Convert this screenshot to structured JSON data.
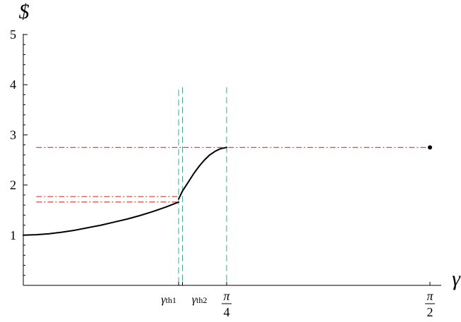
{
  "chart_data": {
    "type": "line",
    "title": "",
    "xlabel": "γ",
    "ylabel": "$",
    "ylim": [
      0,
      5
    ],
    "xlim": [
      0,
      1.6
    ],
    "y_ticks": [
      {
        "value": 1,
        "label": "1"
      },
      {
        "value": 2,
        "label": "2"
      },
      {
        "value": 3,
        "label": "3"
      },
      {
        "value": 4,
        "label": "4"
      },
      {
        "value": 5,
        "label": "5"
      }
    ],
    "x_ticks": [
      {
        "id": "gth1",
        "value": 0.6,
        "main": "γ",
        "sub": "th1"
      },
      {
        "id": "gth2",
        "value": 0.615,
        "main": "γ",
        "sub": "th2"
      },
      {
        "id": "pi4",
        "value": 0.7854,
        "numerator": "π",
        "denominator": "4"
      },
      {
        "id": "pi2",
        "value": 1.5708,
        "numerator": "π",
        "denominator": "2"
      }
    ],
    "series": [
      {
        "id": "lower-branch",
        "color": "#000000",
        "x": [
          0,
          0.05,
          0.1,
          0.15,
          0.2,
          0.25,
          0.3,
          0.35,
          0.4,
          0.45,
          0.5,
          0.55,
          0.6
        ],
        "y": [
          1.0,
          1.01,
          1.03,
          1.06,
          1.1,
          1.15,
          1.2,
          1.26,
          1.32,
          1.39,
          1.47,
          1.56,
          1.66
        ]
      },
      {
        "id": "upper-branch",
        "color": "#000000",
        "x": [
          0.6,
          0.615,
          0.64,
          0.66,
          0.68,
          0.7,
          0.72,
          0.74,
          0.76,
          0.7854
        ],
        "y": [
          1.72,
          1.88,
          2.08,
          2.24,
          2.38,
          2.5,
          2.6,
          2.67,
          2.72,
          2.75
        ]
      }
    ],
    "endpoint": {
      "x": 1.5708,
      "y": 2.75,
      "color": "#000000"
    },
    "horizontal_refs": [
      {
        "id": "ref-high",
        "y": 2.75,
        "x_start": 0.05,
        "x_end": 1.5708,
        "color": "#c81e1e"
      },
      {
        "id": "ref-mid",
        "y": 1.77,
        "x_start": 0.05,
        "x_end": 0.6,
        "color": "#c81e1e"
      },
      {
        "id": "ref-low",
        "y": 1.66,
        "x_start": 0.05,
        "x_end": 0.6,
        "color": "#c81e1e"
      }
    ],
    "vertical_refs": [
      {
        "id": "vref-gth1",
        "x": 0.6,
        "y_start": 0,
        "y_end": 3.9,
        "color": "#3fa58e"
      },
      {
        "id": "vref-gth2",
        "x": 0.615,
        "y_start": 0,
        "y_end": 3.95,
        "color": "#3fa58e"
      },
      {
        "id": "vref-pi4",
        "x": 0.7854,
        "y_start": 0,
        "y_end": 3.95,
        "color": "#3fa58e"
      }
    ],
    "grid": false,
    "legend": "none"
  }
}
